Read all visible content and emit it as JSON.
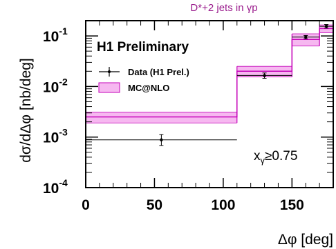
{
  "top_title": "D*+2 jets in γp",
  "chart_data": {
    "type": "bar",
    "title": "D*+2 jets in γp",
    "xlabel": "Δφ [deg]",
    "ylabel": "dσ/dΔφ [nb/deg]",
    "xlim": [
      0,
      180
    ],
    "ylim": [
      0.0001,
      0.2
    ],
    "yscale": "log",
    "x_ticks": [
      "0",
      "50",
      "100",
      "150"
    ],
    "x_tick_values": [
      0,
      50,
      100,
      150
    ],
    "y_ticks": [
      {
        "value": 0.1,
        "base": "10",
        "exp": "-1"
      },
      {
        "value": 0.01,
        "base": "10",
        "exp": "-2"
      },
      {
        "value": 0.001,
        "base": "10",
        "exp": "-3"
      },
      {
        "value": 0.0001,
        "base": "10",
        "exp": "-4"
      }
    ],
    "bins": [
      [
        0,
        110
      ],
      [
        110,
        150
      ],
      [
        150,
        170
      ],
      [
        170,
        180
      ]
    ],
    "series": [
      {
        "name": "Data (H1 Prel.)",
        "type": "points",
        "x": [
          55,
          130,
          160,
          175
        ],
        "values": [
          0.00088,
          0.0165,
          0.095,
          0.155
        ],
        "err_low": [
          0.00068,
          0.0145,
          0.088,
          0.143
        ],
        "err_high": [
          0.00112,
          0.0185,
          0.102,
          0.168
        ]
      },
      {
        "name": "MC@NLO",
        "type": "band",
        "values": [
          0.0025,
          0.02,
          0.085,
          0.14
        ],
        "band_low": [
          0.0019,
          0.0155,
          0.063,
          0.115
        ],
        "band_high": [
          0.0031,
          0.025,
          0.11,
          0.165
        ]
      }
    ],
    "annotations": {
      "preliminary": "H1 Preliminary",
      "cut": "xγ≥0.75"
    },
    "legend": "top-left"
  },
  "labels": {
    "preliminary": "H1 Preliminary",
    "cut_main": "x",
    "cut_sub": "γ",
    "cut_rest": "≥0.75"
  },
  "colors": {
    "band_fill": "#f6b8f0",
    "band_line": "#c400b8",
    "frame": "#000000",
    "title": "#9a1b8c"
  }
}
